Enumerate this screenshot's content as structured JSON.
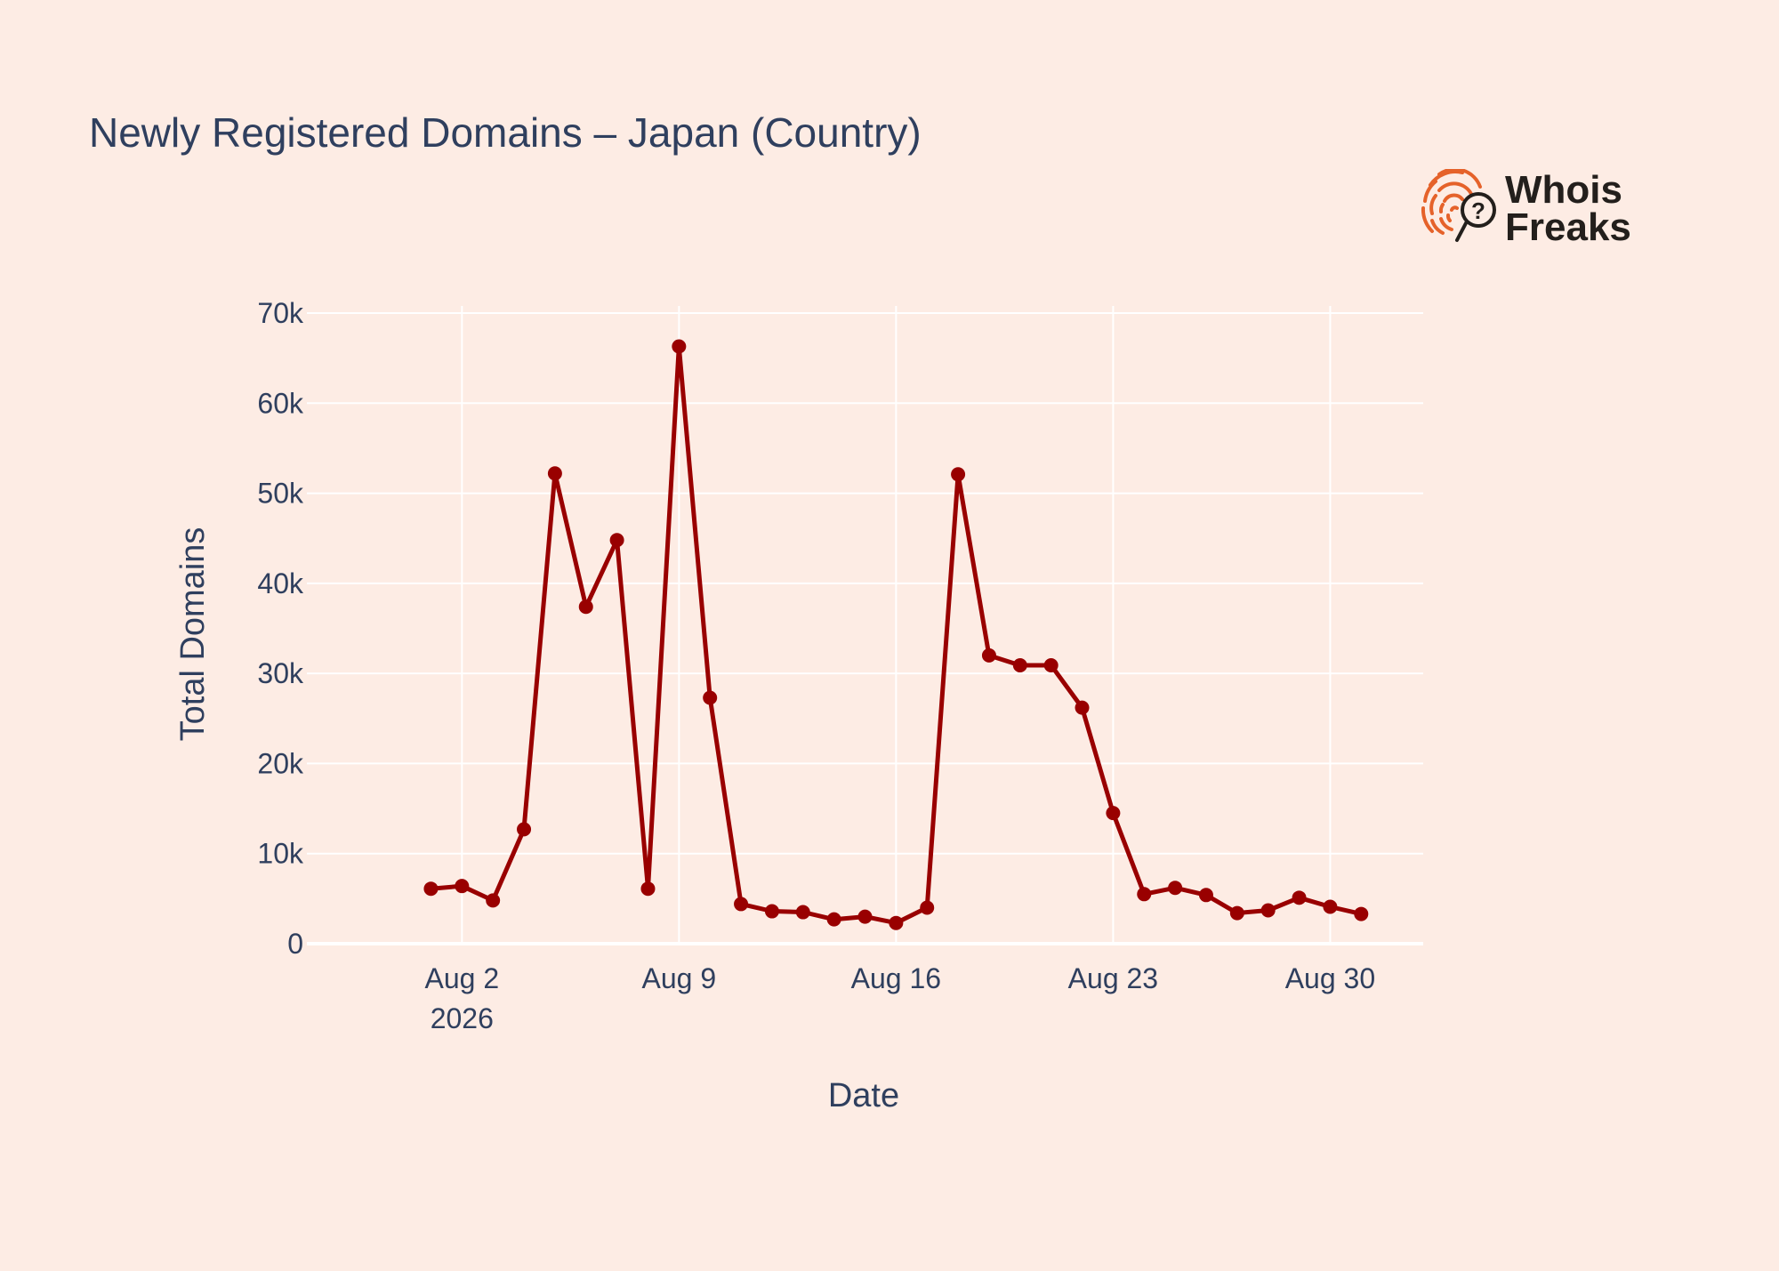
{
  "colors": {
    "background": "#fdece4",
    "line": "#990000",
    "grid": "#ffffff",
    "text": "#2f3f5e",
    "logo_orange": "#e5622a",
    "logo_text": "#231f1c"
  },
  "logo": {
    "icon": "fingerprint-magnifier-icon",
    "line1": "Whois",
    "line2": "Freaks"
  },
  "chart_data": {
    "type": "line",
    "title": "Newly Registered Domains – Japan (Country)",
    "xlabel": "Date",
    "ylabel": "Total Domains",
    "ylim": [
      0,
      70000
    ],
    "xlim": [
      "2026-07-28",
      "2026-09-02"
    ],
    "grid": true,
    "y_ticks": [
      {
        "value": 0,
        "label": "0"
      },
      {
        "value": 10000,
        "label": "10k"
      },
      {
        "value": 20000,
        "label": "20k"
      },
      {
        "value": 30000,
        "label": "30k"
      },
      {
        "value": 40000,
        "label": "40k"
      },
      {
        "value": 50000,
        "label": "50k"
      },
      {
        "value": 60000,
        "label": "60k"
      },
      {
        "value": 70000,
        "label": "70k"
      }
    ],
    "x_ticks": [
      {
        "date": "2026-08-02",
        "label": "Aug 2",
        "sublabel": "2026"
      },
      {
        "date": "2026-08-09",
        "label": "Aug 9",
        "sublabel": ""
      },
      {
        "date": "2026-08-16",
        "label": "Aug 16",
        "sublabel": ""
      },
      {
        "date": "2026-08-23",
        "label": "Aug 23",
        "sublabel": ""
      },
      {
        "date": "2026-08-30",
        "label": "Aug 30",
        "sublabel": ""
      }
    ],
    "series": [
      {
        "x": [
          "2026-08-01",
          "2026-08-02",
          "2026-08-03",
          "2026-08-04",
          "2026-08-05",
          "2026-08-06",
          "2026-08-07",
          "2026-08-08",
          "2026-08-09",
          "2026-08-10",
          "2026-08-11",
          "2026-08-12",
          "2026-08-13",
          "2026-08-14",
          "2026-08-15",
          "2026-08-16",
          "2026-08-17",
          "2026-08-18",
          "2026-08-19",
          "2026-08-20",
          "2026-08-21",
          "2026-08-22",
          "2026-08-23",
          "2026-08-24",
          "2026-08-25",
          "2026-08-26",
          "2026-08-27",
          "2026-08-28",
          "2026-08-29",
          "2026-08-30",
          "2026-08-31"
        ],
        "y": [
          6100,
          6400,
          4800,
          12700,
          52200,
          37400,
          44800,
          6100,
          66300,
          27300,
          4400,
          3600,
          3500,
          2700,
          3000,
          2300,
          4000,
          52100,
          32000,
          30900,
          30900,
          26200,
          14500,
          5500,
          6200,
          5400,
          3400,
          3700,
          5100,
          4100,
          3300
        ]
      }
    ]
  }
}
